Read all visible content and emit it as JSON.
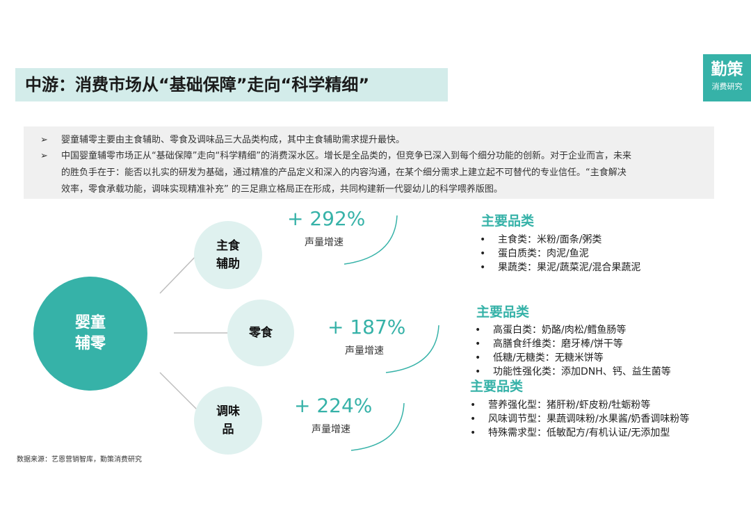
{
  "header": {
    "title": "中游：消费市场从“基础保障”走向“科学精细”"
  },
  "brand": {
    "name": "勤策",
    "sub": "消费研究",
    "color": "#36b2a8"
  },
  "summary": {
    "bullet_symbol": "➢",
    "line1": "婴童辅零主要由主食辅助、零食及调味品三大品类构成，其中主食辅助需求提升最快。",
    "line2": "中国婴童辅零市场正从“基础保障”走向“科学精细”的消费深水区。增长是全品类的，但竞争已深入到每个细分功能的创新。对于企业而言，未来",
    "line3": "的胜负手在于：能否以扎实的研发为基础，通过精准的产品定义和深入的内容沟通，在某个细分需求上建立起不可替代的专业信任。“主食解决",
    "line4": "效率，零食承载功能，调味实现精准补充” 的三足鼎立格局正在形成，共同构建新一代婴幼儿的科学喂养版图。"
  },
  "diagram": {
    "center": {
      "line1": "婴童",
      "line2": "辅零"
    },
    "staple": {
      "line1": "主食",
      "line2": "辅助",
      "growth": "+ 292%",
      "growth_label": "声量增速"
    },
    "snack": {
      "line1": "零食",
      "growth": "+ 187%",
      "growth_label": "声量增速"
    },
    "seasoning": {
      "line1": "调味",
      "line2": "品",
      "growth": "+ 224%",
      "growth_label": "声量增速"
    }
  },
  "categories": {
    "bullet": "•",
    "staple": {
      "heading": "主要品类",
      "items": [
        "主食类：米粉/面条/粥类",
        "蛋白质类：肉泥/鱼泥",
        "果蔬类：果泥/蔬菜泥/混合果蔬泥"
      ]
    },
    "snack": {
      "heading": "主要品类",
      "items": [
        "高蛋白类：奶酪/肉松/鳕鱼肠等",
        "高膳食纤维类：磨牙棒/饼干等",
        "低糖/无糖类：无糖米饼等",
        "功能性强化类：添加DNH、钙、益生菌等"
      ]
    },
    "seasoning": {
      "heading": "主要品类",
      "items": [
        "营养强化型：猪肝粉/虾皮粉/牡蛎粉等",
        "风味调节型：果蔬调味粉/水果酱/奶香调味粉等",
        "特殊需求型：低敏配方/有机认证/无添加型"
      ]
    }
  },
  "source": "数据来源：艺恩营销智库，勤策消费研究"
}
